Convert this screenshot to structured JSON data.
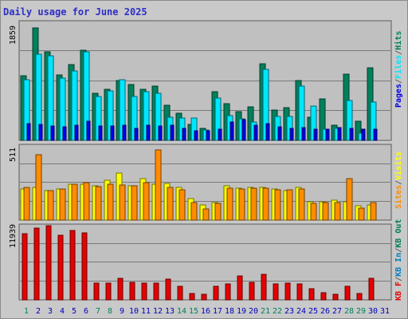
{
  "title": "Daily usage for June 2025",
  "colors": {
    "hits": "#00805c",
    "files": "#00e6ff",
    "pages": "#0000e6",
    "visits": "#ffff00",
    "sites": "#ff8c00",
    "kb_in": "#0080c0",
    "kb_out": "#00804f",
    "kb_f": "#e60000",
    "slash": "#606060"
  },
  "chart_data": [
    {
      "type": "bar",
      "title": "Daily usage for June 2025",
      "legend": [
        "Pages",
        "Files",
        "Hits"
      ],
      "y_max_label": "1859",
      "ylim": [
        0,
        1859
      ],
      "categories": [
        "1",
        "2",
        "3",
        "4",
        "5",
        "6",
        "7",
        "8",
        "9",
        "10",
        "11",
        "12",
        "13",
        "14",
        "15",
        "16",
        "17",
        "18",
        "19",
        "20",
        "21",
        "22",
        "23",
        "24",
        "25",
        "26",
        "27",
        "28",
        "29",
        "30",
        "31"
      ],
      "series": [
        {
          "name": "Hits",
          "values": [
            1023,
            1775,
            1393,
            1036,
            1195,
            1422,
            744,
            802,
            936,
            878,
            798,
            848,
            552,
            427,
            245,
            193,
            770,
            573,
            448,
            530,
            1209,
            480,
            521,
            944,
            358,
            659,
            236,
            1041,
            302,
            1148,
            0
          ]
        },
        {
          "name": "Files",
          "values": [
            954,
            1355,
            1336,
            977,
            1099,
            1394,
            691,
            777,
            951,
            697,
            772,
            740,
            362,
            350,
            353,
            166,
            662,
            388,
            345,
            283,
            1117,
            376,
            374,
            859,
            538,
            171,
            186,
            630,
            116,
            600,
            0
          ]
        },
        {
          "name": "Pages",
          "values": [
            265,
            257,
            227,
            215,
            244,
            304,
            232,
            222,
            244,
            194,
            233,
            226,
            236,
            183,
            151,
            157,
            178,
            285,
            331,
            234,
            263,
            212,
            193,
            207,
            179,
            171,
            196,
            187,
            177,
            179,
            0
          ]
        }
      ]
    },
    {
      "type": "bar",
      "legend": [
        "Sites",
        "Visits"
      ],
      "y_max_label": "511",
      "ylim": [
        0,
        511
      ],
      "categories": [
        "1",
        "2",
        "3",
        "4",
        "5",
        "6",
        "7",
        "8",
        "9",
        "10",
        "11",
        "12",
        "13",
        "14",
        "15",
        "16",
        "17",
        "18",
        "19",
        "20",
        "21",
        "22",
        "23",
        "24",
        "25",
        "26",
        "27",
        "28",
        "29",
        "30",
        "31"
      ],
      "series": [
        {
          "name": "Visits",
          "values": [
            217,
            224,
            203,
            214,
            249,
            249,
            238,
            277,
            322,
            236,
            285,
            247,
            255,
            224,
            150,
            104,
            122,
            236,
            222,
            226,
            227,
            213,
            206,
            224,
            128,
            128,
            139,
            129,
            98,
            103,
            0
          ]
        },
        {
          "name": "Sites",
          "values": [
            224,
            452,
            203,
            214,
            249,
            256,
            230,
            247,
            240,
            235,
            256,
            481,
            227,
            208,
            119,
            79,
            114,
            218,
            215,
            219,
            221,
            207,
            210,
            215,
            113,
            119,
            119,
            284,
            83,
            122,
            0
          ]
        }
      ]
    },
    {
      "type": "bar",
      "legend": [
        "KB F",
        "KB In",
        "KB Out"
      ],
      "y_max_label": "11939",
      "ylim": [
        0,
        11939
      ],
      "categories": [
        "1",
        "2",
        "3",
        "4",
        "5",
        "6",
        "7",
        "8",
        "9",
        "10",
        "11",
        "12",
        "13",
        "14",
        "15",
        "16",
        "17",
        "18",
        "19",
        "20",
        "21",
        "22",
        "23",
        "24",
        "25",
        "26",
        "27",
        "28",
        "29",
        "30",
        "31"
      ],
      "series": [
        {
          "name": "KB F",
          "values": [
            10640,
            11522,
            11939,
            10425,
            11230,
            10835,
            2706,
            2693,
            3433,
            2818,
            2753,
            2741,
            3358,
            2158,
            1079,
            882,
            2216,
            2576,
            3908,
            2782,
            4151,
            2579,
            2725,
            2536,
            1838,
            1218,
            928,
            2149,
            1037,
            3440,
            0
          ]
        }
      ]
    }
  ],
  "legends": {
    "top": [
      {
        "key": "pages",
        "label": "Pages"
      },
      {
        "key": "files",
        "label": "Files"
      },
      {
        "key": "hits",
        "label": "Hits"
      }
    ],
    "mid": [
      {
        "key": "sites",
        "label": "Sites"
      },
      {
        "key": "visits",
        "label": "Visits"
      }
    ],
    "bottom": [
      {
        "key": "kb_f",
        "label": "KB F"
      },
      {
        "key": "kb_in",
        "label": "KB In"
      },
      {
        "key": "kb_out",
        "label": "KB Out"
      }
    ]
  },
  "weekend_days": [
    1,
    7,
    8,
    14,
    15,
    21,
    22,
    28,
    29
  ]
}
